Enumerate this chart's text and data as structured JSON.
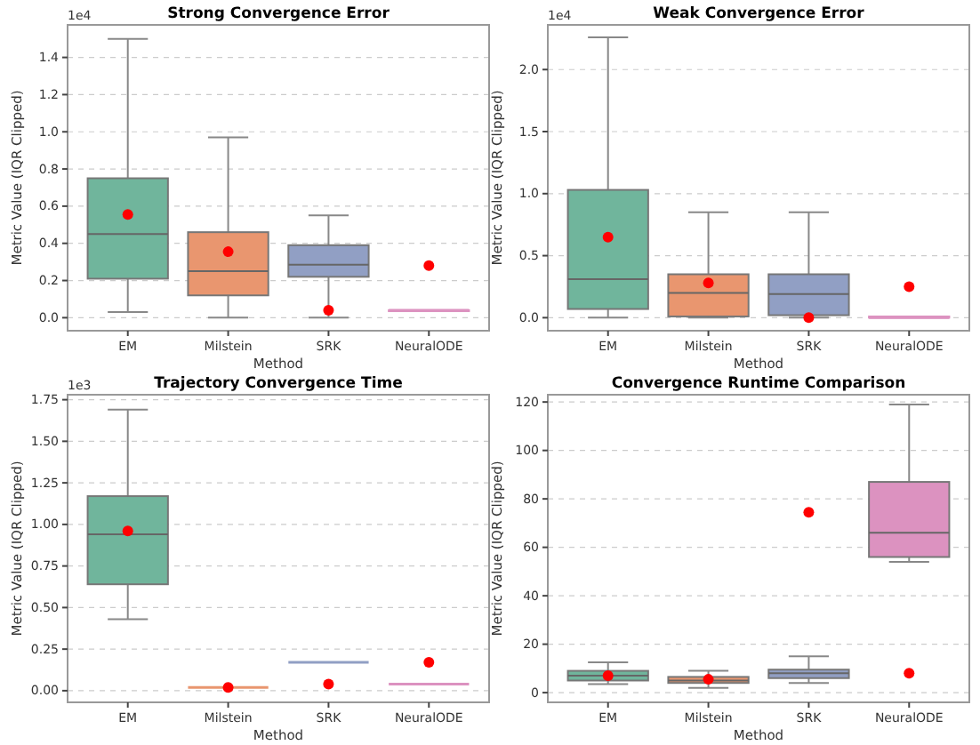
{
  "chart_data": [
    {
      "type": "box",
      "title": "Strong Convergence Error",
      "xlabel": "Method",
      "ylabel": "Metric Value (IQR Clipped)",
      "annotations": [
        "1e4"
      ],
      "categories": [
        "EM",
        "Milstein",
        "SRK",
        "NeuralODE"
      ],
      "colors": [
        "#70b59c",
        "#e9966f",
        "#919fc4",
        "#dc92c0"
      ],
      "grid": "y",
      "ylim": [
        -0.07,
        1.575
      ],
      "yticks": [
        {
          "value": 0,
          "label": "0.0"
        },
        {
          "value": 0.2,
          "label": "0.2"
        },
        {
          "value": 0.4,
          "label": "0.4"
        },
        {
          "value": 0.6,
          "label": "0.6"
        },
        {
          "value": 0.8,
          "label": "0.8"
        },
        {
          "value": 1,
          "label": "1.0"
        },
        {
          "value": 1.2,
          "label": "1.2"
        },
        {
          "value": 1.4,
          "label": "1.4"
        }
      ],
      "boxes": [
        {
          "low": 0.03,
          "q1": 0.21,
          "median": 0.45,
          "q3": 0.75,
          "high": 1.5,
          "mean": 0.555
        },
        {
          "low": 0.0,
          "q1": 0.12,
          "median": 0.25,
          "q3": 0.46,
          "high": 0.97,
          "mean": 0.355
        },
        {
          "low": 0.0,
          "q1": 0.22,
          "median": 0.285,
          "q3": 0.39,
          "high": 0.55,
          "mean": 0.04
        },
        {
          "low": 0.035,
          "q1": 0.035,
          "median": 0.04,
          "q3": 0.04,
          "high": 0.04,
          "mean": 0.28
        }
      ]
    },
    {
      "type": "box",
      "title": "Weak Convergence Error",
      "xlabel": "Method",
      "ylabel": "Metric Value (IQR Clipped)",
      "annotations": [
        "1e4"
      ],
      "categories": [
        "EM",
        "Milstein",
        "SRK",
        "NeuralODE"
      ],
      "colors": [
        "#70b59c",
        "#e9966f",
        "#919fc4",
        "#dc92c0"
      ],
      "grid": "y",
      "ylim": [
        -0.105,
        2.36
      ],
      "yticks": [
        {
          "value": 0,
          "label": "0.0"
        },
        {
          "value": 0.5,
          "label": "0.5"
        },
        {
          "value": 1,
          "label": "1.0"
        },
        {
          "value": 1.5,
          "label": "1.5"
        },
        {
          "value": 2,
          "label": "2.0"
        }
      ],
      "boxes": [
        {
          "low": 0.0,
          "q1": 0.07,
          "median": 0.31,
          "q3": 1.03,
          "high": 2.26,
          "mean": 0.65
        },
        {
          "low": 0.0,
          "q1": 0.01,
          "median": 0.2,
          "q3": 0.35,
          "high": 0.85,
          "mean": 0.28
        },
        {
          "low": 0.0,
          "q1": 0.02,
          "median": 0.19,
          "q3": 0.35,
          "high": 0.85,
          "mean": 0.0
        },
        {
          "low": 0.0,
          "q1": 0.0,
          "median": 0.0,
          "q3": 0.01,
          "high": 0.01,
          "mean": 0.25
        }
      ]
    },
    {
      "type": "box",
      "title": "Trajectory Convergence Time",
      "xlabel": "Method",
      "ylabel": "Metric Value (IQR Clipped)",
      "annotations": [
        "1e3"
      ],
      "categories": [
        "EM",
        "Milstein",
        "SRK",
        "NeuralODE"
      ],
      "colors": [
        "#70b59c",
        "#e9966f",
        "#919fc4",
        "#dc92c0"
      ],
      "grid": "y",
      "ylim": [
        -0.07,
        1.78
      ],
      "yticks": [
        {
          "value": 0,
          "label": "0.00"
        },
        {
          "value": 0.25,
          "label": "0.25"
        },
        {
          "value": 0.5,
          "label": "0.50"
        },
        {
          "value": 0.75,
          "label": "0.75"
        },
        {
          "value": 1,
          "label": "1.00"
        },
        {
          "value": 1.25,
          "label": "1.25"
        },
        {
          "value": 1.5,
          "label": "1.50"
        },
        {
          "value": 1.75,
          "label": "1.75"
        }
      ],
      "boxes": [
        {
          "low": 0.43,
          "q1": 0.64,
          "median": 0.94,
          "q3": 1.17,
          "high": 1.69,
          "mean": 0.96
        },
        {
          "low": 0.02,
          "q1": 0.02,
          "median": 0.02,
          "q3": 0.02,
          "high": 0.02,
          "mean": 0.02
        },
        {
          "low": 0.17,
          "q1": 0.17,
          "median": 0.17,
          "q3": 0.17,
          "high": 0.17,
          "mean": 0.04
        },
        {
          "low": 0.04,
          "q1": 0.04,
          "median": 0.04,
          "q3": 0.04,
          "high": 0.04,
          "mean": 0.17
        }
      ]
    },
    {
      "type": "box",
      "title": "Convergence Runtime Comparison",
      "xlabel": "Method",
      "ylabel": "Metric Value (IQR Clipped)",
      "categories": [
        "EM",
        "Milstein",
        "SRK",
        "NeuralODE"
      ],
      "colors": [
        "#70b59c",
        "#e9966f",
        "#919fc4",
        "#dc92c0"
      ],
      "grid": "y",
      "ylim": [
        -4,
        123
      ],
      "yticks": [
        0,
        20,
        40,
        60,
        80,
        100,
        120
      ],
      "boxes": [
        {
          "low": 3.5,
          "q1": 5,
          "median": 7,
          "q3": 9,
          "high": 12.5,
          "mean": 7
        },
        {
          "low": 2,
          "q1": 4,
          "median": 5,
          "q3": 6.5,
          "high": 9,
          "mean": 5.5
        },
        {
          "low": 4,
          "q1": 6,
          "median": 8,
          "q3": 9.5,
          "high": 15,
          "mean": 74.5
        },
        {
          "low": 54,
          "q1": 56,
          "median": 66,
          "q3": 87,
          "high": 119,
          "mean": 8
        }
      ]
    }
  ]
}
